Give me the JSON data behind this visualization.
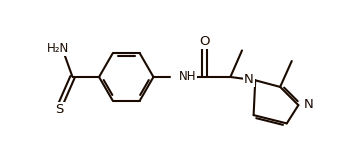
{
  "bg_color": "#ffffff",
  "line_color": "#1a0a00",
  "line_width": 1.5,
  "font_size": 8.5,
  "figsize": [
    3.52,
    1.44
  ],
  "dpi": 100,
  "xlim": [
    -0.3,
    10.2
  ],
  "ylim": [
    1.2,
    5.5
  ]
}
